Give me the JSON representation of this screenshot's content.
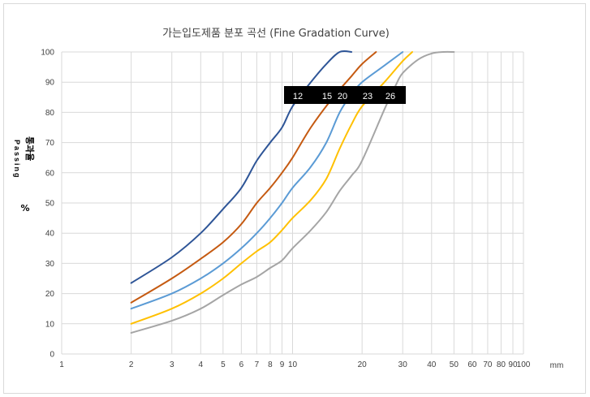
{
  "chart_data": {
    "type": "line",
    "title": "가는입도제품 분포 곡선 (Fine Gradation Curve)",
    "ylabel_kr": "통과율",
    "ylabel_en": "Passing",
    "ylabel_unit": "%",
    "xlabel": "mm",
    "x_scale": "log",
    "xlim": [
      1,
      100
    ],
    "ylim": [
      0,
      100
    ],
    "grid": true,
    "x_ticks": [
      1,
      2,
      3,
      4,
      5,
      6,
      7,
      8,
      9,
      10,
      20,
      30,
      40,
      50,
      60,
      70,
      80,
      90,
      100
    ],
    "y_ticks": [
      0,
      10,
      20,
      30,
      40,
      50,
      60,
      70,
      80,
      90,
      100
    ],
    "curve_labels": [
      "12",
      "15",
      "20",
      "23",
      "26"
    ],
    "series": [
      {
        "name": "12",
        "color": "#2e5597",
        "x": [
          2,
          3,
          4,
          5,
          6,
          7,
          8,
          9,
          10,
          12,
          14,
          16,
          18
        ],
        "y": [
          23.5,
          32,
          40,
          48,
          55,
          64,
          70,
          75,
          82,
          90,
          96,
          100,
          100
        ]
      },
      {
        "name": "15",
        "color": "#c55a11",
        "x": [
          2,
          3,
          4,
          5,
          6,
          7,
          8,
          9,
          10,
          12,
          15,
          18,
          20,
          23
        ],
        "y": [
          17,
          25,
          31.5,
          37,
          43,
          50,
          55,
          60,
          65,
          75,
          85,
          92,
          96,
          100
        ]
      },
      {
        "name": "20",
        "color": "#5b9bd5",
        "x": [
          2,
          3,
          4,
          5,
          6,
          7,
          8,
          9,
          10,
          12,
          14,
          16,
          18,
          20,
          25,
          30
        ],
        "y": [
          15,
          20,
          25,
          30,
          35,
          40,
          45,
          50,
          55,
          62,
          70,
          80,
          86,
          90,
          95.5,
          100
        ]
      },
      {
        "name": "23",
        "color": "#ffc000",
        "x": [
          2,
          3,
          4,
          5,
          6,
          7,
          8,
          9,
          10,
          12,
          14,
          16,
          18,
          20,
          25,
          30,
          33
        ],
        "y": [
          10,
          15,
          20,
          25,
          30,
          34,
          37,
          41,
          45,
          51,
          58,
          68,
          76,
          82,
          90,
          97,
          100
        ]
      },
      {
        "name": "26",
        "color": "#a5a5a5",
        "x": [
          2,
          3,
          4,
          5,
          6,
          7,
          8,
          9,
          10,
          12,
          14,
          16,
          18,
          20,
          25,
          28,
          30,
          35,
          40,
          45,
          50
        ],
        "y": [
          7,
          11,
          15,
          19.5,
          23,
          25.5,
          28.5,
          31,
          35,
          41,
          47,
          54,
          59,
          64,
          81,
          89,
          93,
          97.5,
          99.5,
          100,
          100
        ]
      }
    ]
  }
}
